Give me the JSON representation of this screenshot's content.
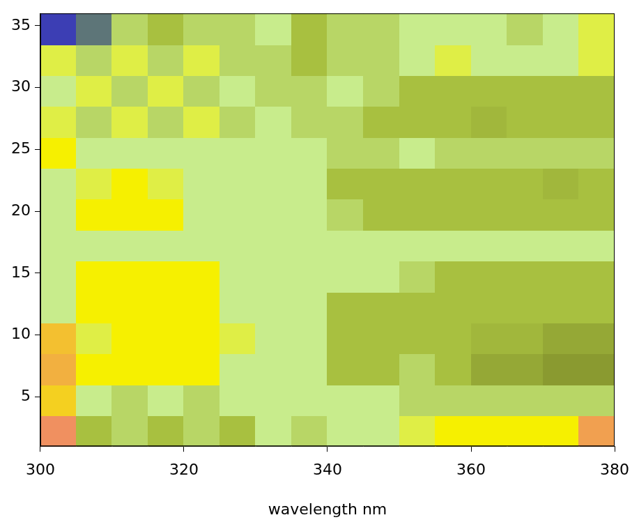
{
  "chart_data": {
    "type": "heatmap",
    "x_label": "wavelength nm",
    "x": [
      302.5,
      307.5,
      312.5,
      317.5,
      322.5,
      327.5,
      332.5,
      337.5,
      342.5,
      347.5,
      352.5,
      357.5,
      362.5,
      367.5,
      372.5,
      377.5
    ],
    "y": [
      2.25,
      4.75,
      7.25,
      9.75,
      12.25,
      14.75,
      17.25,
      19.75,
      22.25,
      24.75,
      27.25,
      29.75,
      32.25,
      34.75
    ],
    "cells": [
      [
        4.6,
        2,
        2.5,
        2,
        2.5,
        2,
        3,
        2.5,
        3,
        3,
        3.5,
        4,
        4,
        4,
        4,
        4.5
      ],
      [
        4.2,
        3,
        2.5,
        3,
        2.5,
        3,
        3,
        3,
        3,
        3,
        2.5,
        2.5,
        2.5,
        2.5,
        2.5,
        2.5
      ],
      [
        4.4,
        4,
        4,
        4,
        4,
        3,
        3,
        3,
        2,
        2,
        2.5,
        2,
        1.5,
        1.5,
        1.2,
        1.2
      ],
      [
        4.3,
        3.5,
        4,
        4,
        4,
        3.5,
        3,
        3,
        2,
        2,
        2,
        2,
        1.8,
        1.8,
        1.5,
        1.5
      ],
      [
        3,
        4,
        4,
        4,
        4,
        3,
        3,
        3,
        2,
        2,
        2,
        2,
        2,
        2,
        2,
        2
      ],
      [
        3,
        4,
        4,
        4,
        4,
        3,
        3,
        3,
        3,
        3,
        2.5,
        2,
        2,
        2,
        2,
        2
      ],
      [
        3,
        3,
        3,
        3,
        3,
        3,
        3,
        3,
        3,
        3,
        3,
        3,
        3,
        3,
        3,
        3
      ],
      [
        3,
        4,
        4,
        4,
        3,
        3,
        3,
        3,
        2.5,
        2,
        2,
        2,
        2,
        2,
        2,
        2
      ],
      [
        3,
        3.5,
        4,
        3.5,
        3,
        3,
        3,
        3,
        2,
        2,
        2,
        2,
        2,
        2,
        1.8,
        2
      ],
      [
        4,
        3,
        3,
        3,
        3,
        3,
        3,
        3,
        2.5,
        2.5,
        3,
        2.5,
        2.5,
        2.5,
        2.5,
        2.5
      ],
      [
        3.5,
        2.5,
        3.5,
        2.5,
        3.5,
        2.5,
        3,
        2.5,
        2.5,
        2,
        2,
        2,
        1.8,
        2,
        2,
        2
      ],
      [
        3,
        3.5,
        2.5,
        3.5,
        2.5,
        3,
        2.5,
        2.5,
        3,
        2.5,
        2,
        2,
        2,
        2,
        2,
        2
      ],
      [
        3.5,
        2.5,
        3.5,
        2.5,
        3.5,
        2.5,
        2.5,
        2,
        2.5,
        2.5,
        3,
        3.5,
        3,
        3,
        3,
        3.5
      ],
      [
        0.5,
        1,
        2.5,
        2,
        2.5,
        2.5,
        3,
        2,
        2.5,
        2.5,
        3,
        3,
        3,
        2.5,
        3,
        3.5
      ]
    ],
    "xlim": [
      300,
      380
    ],
    "xticks": [
      300,
      320,
      340,
      360,
      380
    ],
    "ylim": [
      1,
      36
    ],
    "yticks": [
      5,
      10,
      15,
      20,
      25,
      30,
      35
    ],
    "grid": false
  }
}
